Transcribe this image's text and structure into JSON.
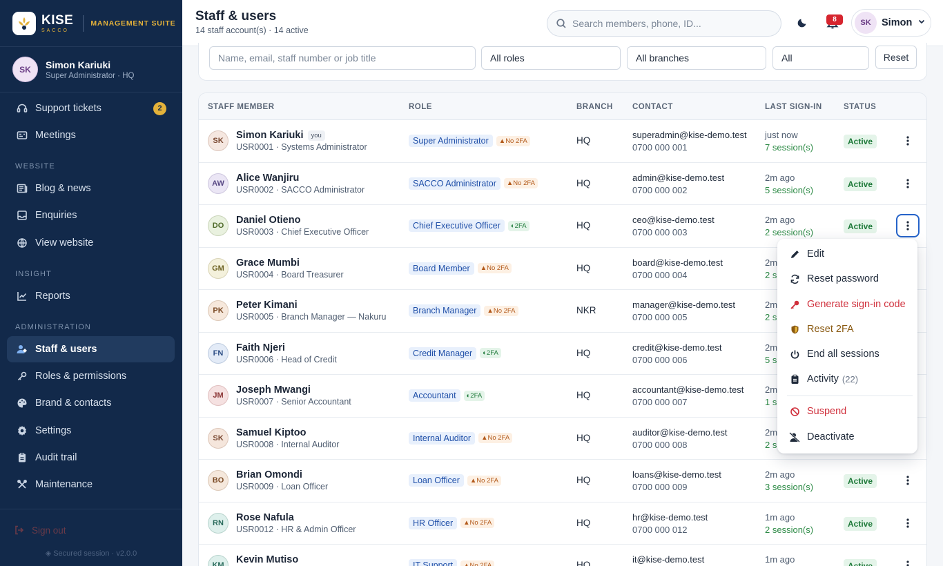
{
  "brand": {
    "name": "KISE",
    "tag": "SACCO",
    "suite": "MANAGEMENT SUITE"
  },
  "profile": {
    "initials": "SK",
    "name": "Simon Kariuki",
    "role": "Super Administrator · HQ"
  },
  "nav": {
    "support": {
      "label": "Support tickets",
      "count": "2"
    },
    "meetings": {
      "label": "Meetings"
    },
    "section_website": "WEBSITE",
    "blog": {
      "label": "Blog & news"
    },
    "enquiries": {
      "label": "Enquiries"
    },
    "view_website": {
      "label": "View website"
    },
    "section_insight": "INSIGHT",
    "reports": {
      "label": "Reports"
    },
    "section_admin": "ADMINISTRATION",
    "staff": {
      "label": "Staff & users"
    },
    "roles": {
      "label": "Roles & permissions"
    },
    "brand": {
      "label": "Brand & contacts"
    },
    "settings": {
      "label": "Settings"
    },
    "audit": {
      "label": "Audit trail"
    },
    "maintenance": {
      "label": "Maintenance"
    }
  },
  "footer": {
    "signout": "Sign out",
    "secured": "Secured session · v2.0.0"
  },
  "header": {
    "title": "Staff & users",
    "subtitle": "14 staff account(s) · 14 active",
    "search_placeholder": "Search members, phone, ID...",
    "notifications": "8",
    "user_initials": "SK",
    "user_name": "Simon"
  },
  "filters": {
    "search_placeholder": "Name, email, staff number or job title",
    "role": "All roles",
    "branch": "All branches",
    "status": "All",
    "reset": "Reset"
  },
  "table": {
    "headers": {
      "member": "STAFF MEMBER",
      "role": "ROLE",
      "branch": "BRANCH",
      "contact": "CONTACT",
      "last": "LAST SIGN-IN",
      "status": "STATUS"
    },
    "you_label": "you",
    "rows": [
      {
        "initials": "SK",
        "name": "Simon Kariuki",
        "sub": "USR0001 · Systems Administrator",
        "role": "Super Administrator",
        "tfa": "No 2FA",
        "branch": "HQ",
        "email": "superadmin@kise-demo.test",
        "phone": "0700 000 001",
        "last": "just now",
        "sessions": "7 session(s)",
        "status": "Active"
      },
      {
        "initials": "AW",
        "name": "Alice Wanjiru",
        "sub": "USR0002 · SACCO Administrator",
        "role": "SACCO Administrator",
        "tfa": "No 2FA",
        "branch": "HQ",
        "email": "admin@kise-demo.test",
        "phone": "0700 000 002",
        "last": "2m ago",
        "sessions": "5 session(s)",
        "status": "Active"
      },
      {
        "initials": "DO",
        "name": "Daniel Otieno",
        "sub": "USR0003 · Chief Executive Officer",
        "role": "Chief Executive Officer",
        "tfa": "2FA",
        "branch": "HQ",
        "email": "ceo@kise-demo.test",
        "phone": "0700 000 003",
        "last": "2m ago",
        "sessions": "2 session(s)",
        "status": "Active"
      },
      {
        "initials": "GM",
        "name": "Grace Mumbi",
        "sub": "USR0004 · Board Treasurer",
        "role": "Board Member",
        "tfa": "No 2FA",
        "branch": "HQ",
        "email": "board@kise-demo.test",
        "phone": "0700 000 004",
        "last": "2m",
        "sessions": "2 s",
        "status": ""
      },
      {
        "initials": "PK",
        "name": "Peter Kimani",
        "sub": "USR0005 · Branch Manager — Nakuru",
        "role": "Branch Manager",
        "tfa": "No 2FA",
        "branch": "NKR",
        "email": "manager@kise-demo.test",
        "phone": "0700 000 005",
        "last": "2m",
        "sessions": "2 s",
        "status": ""
      },
      {
        "initials": "FN",
        "name": "Faith Njeri",
        "sub": "USR0006 · Head of Credit",
        "role": "Credit Manager",
        "tfa": "2FA",
        "branch": "HQ",
        "email": "credit@kise-demo.test",
        "phone": "0700 000 006",
        "last": "2m",
        "sessions": "5 s",
        "status": ""
      },
      {
        "initials": "JM",
        "name": "Joseph Mwangi",
        "sub": "USR0007 · Senior Accountant",
        "role": "Accountant",
        "tfa": "2FA",
        "branch": "HQ",
        "email": "accountant@kise-demo.test",
        "phone": "0700 000 007",
        "last": "2m",
        "sessions": "1 se",
        "status": ""
      },
      {
        "initials": "SK",
        "name": "Samuel Kiptoo",
        "sub": "USR0008 · Internal Auditor",
        "role": "Internal Auditor",
        "tfa": "No 2FA",
        "branch": "HQ",
        "email": "auditor@kise-demo.test",
        "phone": "0700 000 008",
        "last": "2m",
        "sessions": "2 s",
        "status": ""
      },
      {
        "initials": "BO",
        "name": "Brian Omondi",
        "sub": "USR0009 · Loan Officer",
        "role": "Loan Officer",
        "tfa": "No 2FA",
        "branch": "HQ",
        "email": "loans@kise-demo.test",
        "phone": "0700 000 009",
        "last": "2m ago",
        "sessions": "3 session(s)",
        "status": "Active"
      },
      {
        "initials": "RN",
        "name": "Rose Nafula",
        "sub": "USR0012 · HR & Admin Officer",
        "role": "HR Officer",
        "tfa": "No 2FA",
        "branch": "HQ",
        "email": "hr@kise-demo.test",
        "phone": "0700 000 012",
        "last": "1m ago",
        "sessions": "2 session(s)",
        "status": "Active"
      },
      {
        "initials": "KM",
        "name": "Kevin Mutiso",
        "sub": "",
        "role": "IT Support",
        "tfa": "No 2FA",
        "branch": "HQ",
        "email": "it@kise-demo.test",
        "phone": "",
        "last": "1m ago",
        "sessions": "",
        "status": "Active"
      }
    ]
  },
  "row_menu": {
    "edit": "Edit",
    "reset_password": "Reset password",
    "signin_code": "Generate sign-in code",
    "reset_2fa": "Reset 2FA",
    "end_sessions": "End all sessions",
    "activity": "Activity",
    "activity_count": "(22)",
    "suspend": "Suspend",
    "deactivate": "Deactivate"
  },
  "colors": {
    "sidebar": "#12294a",
    "accent": "#e4b23a",
    "primary": "#2563c9",
    "danger": "#d0303c",
    "success": "#1f7a3a"
  }
}
